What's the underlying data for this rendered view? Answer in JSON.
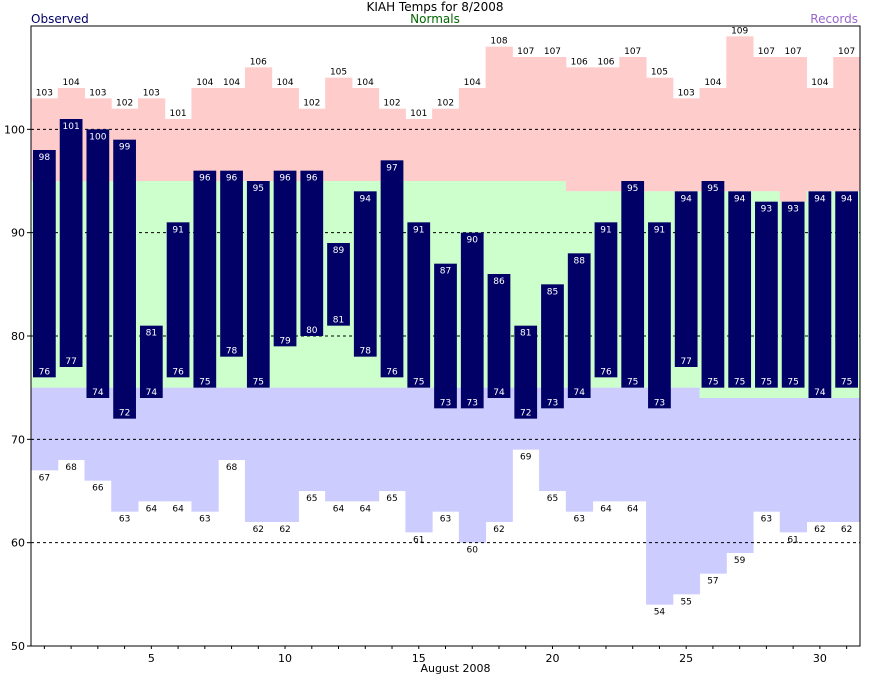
{
  "chart_data": {
    "type": "bar",
    "title": "KIAH Temps for 8/2008",
    "xlabel": "August 2008",
    "ylabel": "",
    "legend": {
      "observed": "Observed",
      "normals": "Normals",
      "records": "Records"
    },
    "ylim": [
      50,
      110
    ],
    "y_ticks": [
      50,
      60,
      70,
      80,
      90,
      100
    ],
    "x_ticks": [
      5,
      10,
      15,
      20,
      25,
      30
    ],
    "gridlines": [
      60,
      70,
      80,
      90,
      100
    ],
    "days": [
      1,
      2,
      3,
      4,
      5,
      6,
      7,
      8,
      9,
      10,
      11,
      12,
      13,
      14,
      15,
      16,
      17,
      18,
      19,
      20,
      21,
      22,
      23,
      24,
      25,
      26,
      27,
      28,
      29,
      30,
      31
    ],
    "observed_high": [
      98,
      101,
      100,
      99,
      81,
      91,
      96,
      96,
      95,
      96,
      96,
      89,
      94,
      97,
      91,
      87,
      90,
      86,
      81,
      85,
      88,
      91,
      95,
      91,
      94,
      95,
      94,
      93,
      93,
      94,
      94
    ],
    "observed_low": [
      76,
      77,
      74,
      72,
      74,
      76,
      75,
      78,
      75,
      79,
      80,
      81,
      78,
      76,
      75,
      73,
      73,
      74,
      72,
      73,
      74,
      76,
      75,
      73,
      77,
      75,
      75,
      75,
      75,
      74,
      75
    ],
    "normal_high": [
      95,
      95,
      95,
      95,
      95,
      95,
      95,
      95,
      95,
      95,
      95,
      95,
      95,
      95,
      95,
      95,
      95,
      95,
      95,
      95,
      94,
      94,
      94,
      94,
      94,
      94,
      94,
      94,
      93,
      94,
      94
    ],
    "normal_low": [
      75,
      75,
      75,
      75,
      75,
      75,
      75,
      75,
      75,
      75,
      75,
      75,
      75,
      75,
      75,
      75,
      75,
      75,
      75,
      75,
      75,
      75,
      75,
      75,
      75,
      74,
      74,
      74,
      74,
      74,
      74
    ],
    "record_high": [
      103,
      104,
      103,
      102,
      103,
      101,
      104,
      104,
      106,
      104,
      102,
      105,
      104,
      102,
      101,
      102,
      104,
      108,
      107,
      107,
      106,
      106,
      107,
      105,
      103,
      104,
      109,
      107,
      107,
      104,
      107
    ],
    "record_low": [
      67,
      68,
      66,
      63,
      64,
      64,
      63,
      68,
      62,
      62,
      65,
      64,
      64,
      65,
      61,
      63,
      60,
      62,
      69,
      65,
      63,
      64,
      64,
      54,
      55,
      57,
      59,
      63,
      61,
      62,
      62
    ],
    "colors": {
      "observed": "#000066",
      "normal": "#ccffcc",
      "record_high": "#ffcccc",
      "record_low": "#ccccff",
      "observed_label": "#000066",
      "normals_label": "#006600",
      "records_label": "#9966cc"
    }
  }
}
